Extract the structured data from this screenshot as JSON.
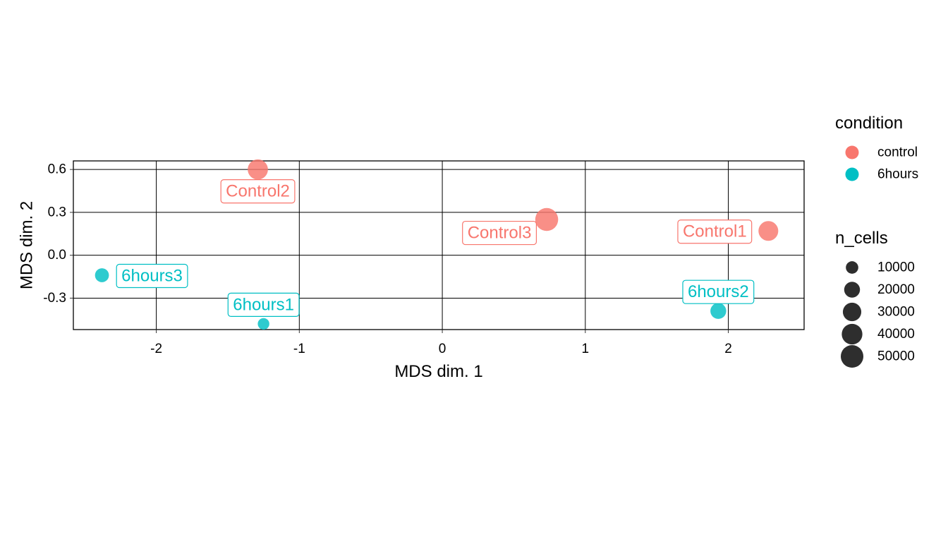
{
  "chart_data": {
    "type": "scatter",
    "title": "",
    "xlabel": "MDS dim. 1",
    "ylabel": "MDS dim. 2",
    "xlim": [
      -2.58,
      2.53
    ],
    "ylim": [
      -0.52,
      0.66
    ],
    "x_ticks": [
      -2,
      -1,
      0,
      1,
      2
    ],
    "x_tick_labels": [
      "-2",
      "-1",
      "0",
      "1",
      "2"
    ],
    "y_ticks": [
      -0.3,
      0.0,
      0.3,
      0.6
    ],
    "y_tick_labels": [
      "-0.3",
      "0.0",
      "0.3",
      "0.6"
    ],
    "grid": true,
    "legend_position": "right",
    "legend_condition": {
      "title": "condition",
      "entries": [
        {
          "label": "control",
          "color": "#F8766D"
        },
        {
          "label": "6hours",
          "color": "#00BFC4"
        }
      ]
    },
    "legend_size": {
      "title": "n_cells",
      "entries": [
        {
          "label": "10000",
          "value": 10000
        },
        {
          "label": "20000",
          "value": 20000
        },
        {
          "label": "30000",
          "value": 30000
        },
        {
          "label": "40000",
          "value": 40000
        },
        {
          "label": "50000",
          "value": 50000
        }
      ]
    },
    "points": [
      {
        "label": "Control1",
        "condition": "control",
        "x": 2.28,
        "y": 0.17,
        "n_cells": 36000
      },
      {
        "label": "Control2",
        "condition": "control",
        "x": -1.29,
        "y": 0.6,
        "n_cells": 38000
      },
      {
        "label": "Control3",
        "condition": "control",
        "x": 0.73,
        "y": 0.25,
        "n_cells": 52000
      },
      {
        "label": "6hours1",
        "condition": "6hours",
        "x": -1.25,
        "y": -0.48,
        "n_cells": 8000
      },
      {
        "label": "6hours2",
        "condition": "6hours",
        "x": 1.93,
        "y": -0.39,
        "n_cells": 20000
      },
      {
        "label": "6hours3",
        "condition": "6hours",
        "x": -2.38,
        "y": -0.14,
        "n_cells": 14000
      }
    ]
  }
}
